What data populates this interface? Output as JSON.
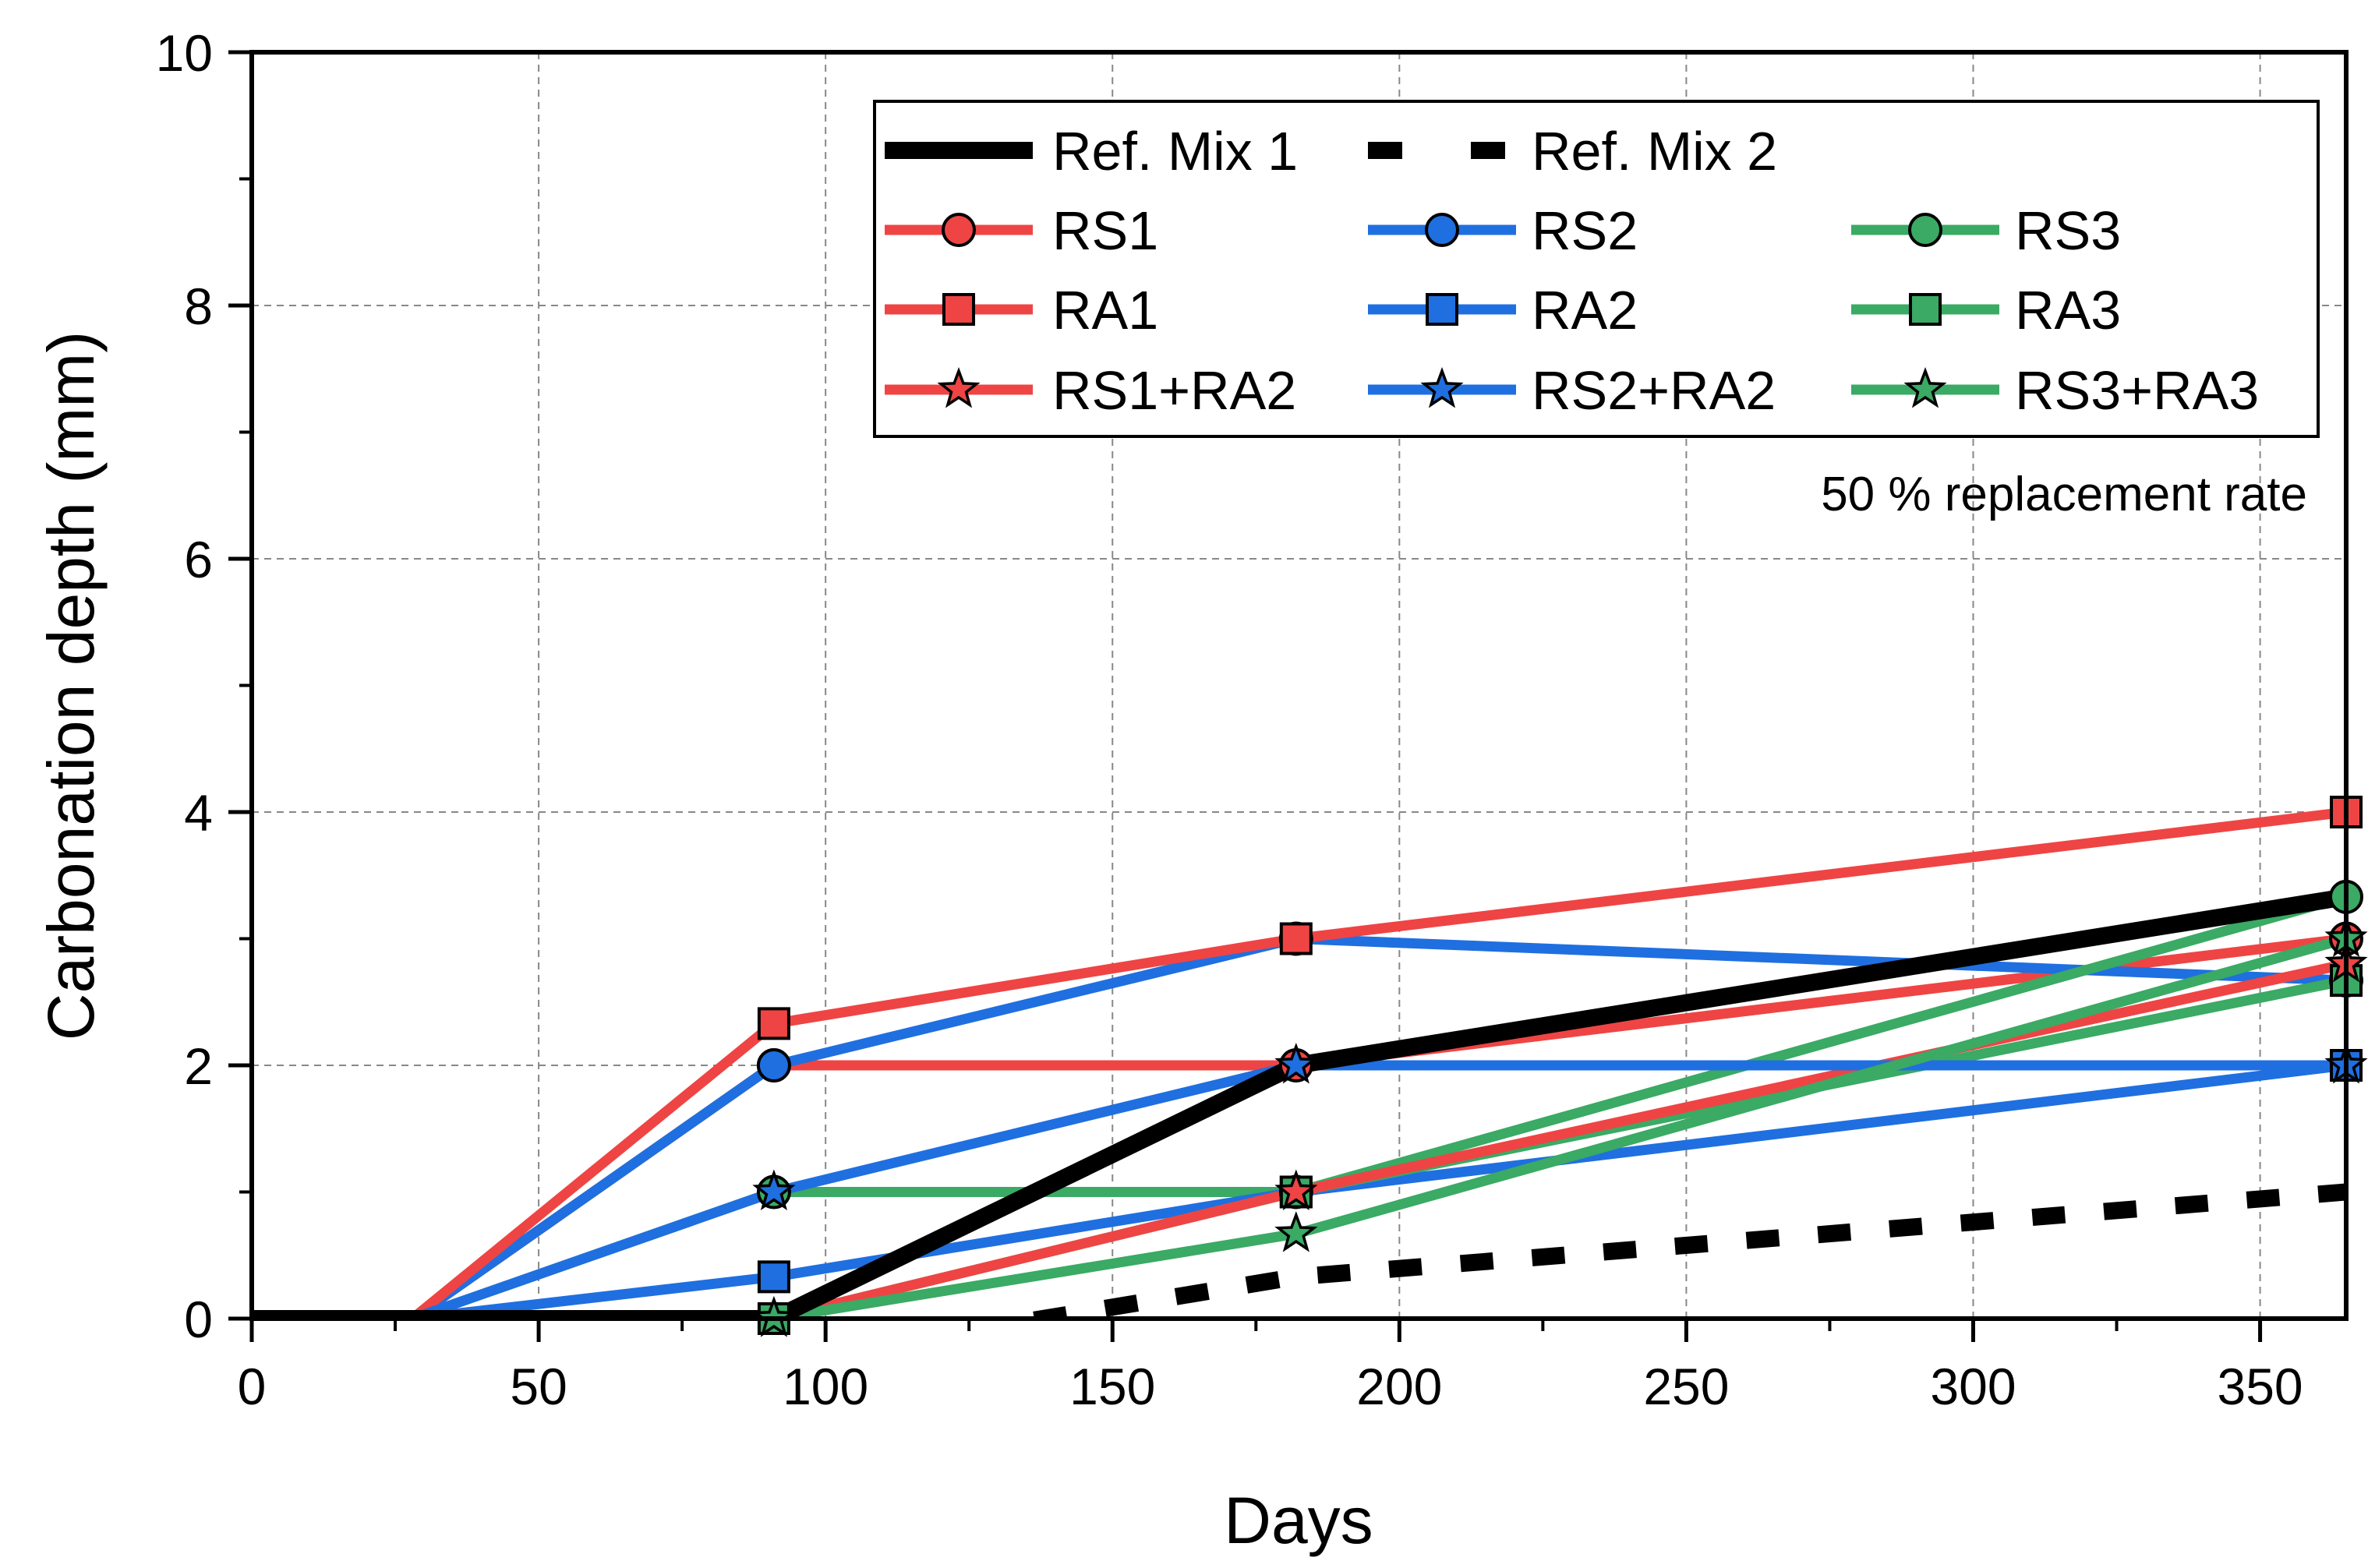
{
  "chart_data": {
    "type": "line",
    "xlabel": "Days",
    "ylabel": "Carbonation depth (mm)",
    "xlim": [
      0,
      365
    ],
    "ylim": [
      0,
      10
    ],
    "xticks": [
      0,
      50,
      100,
      150,
      200,
      250,
      300,
      350
    ],
    "yticks": [
      0,
      2,
      4,
      6,
      8,
      10
    ],
    "grid": true,
    "legend_position": "top-right",
    "annotation": "50 % replacement rate",
    "colors": {
      "red": "#ef4444",
      "blue": "#1f6fe0",
      "green": "#3aaa64",
      "black": "#000000"
    },
    "series": [
      {
        "name": "Ref. Mix 1",
        "color": "#000000",
        "marker": "none",
        "line": "solid-thick",
        "x": [
          0,
          28,
          91,
          182,
          365
        ],
        "y": [
          0,
          0,
          0,
          2,
          3.33
        ]
      },
      {
        "name": "Ref. Mix 2",
        "color": "#000000",
        "marker": "none",
        "line": "dashed",
        "x": [
          0,
          28,
          91,
          182,
          365
        ],
        "y": [
          0,
          0,
          -0.35,
          0.33,
          1.0
        ]
      },
      {
        "name": "RS1",
        "color": "#ef4444",
        "marker": "circle",
        "x": [
          0,
          28,
          91,
          182,
          365
        ],
        "y": [
          0,
          0,
          2,
          2,
          3.0
        ]
      },
      {
        "name": "RS2",
        "color": "#1f6fe0",
        "marker": "circle",
        "x": [
          0,
          28,
          91,
          182,
          365
        ],
        "y": [
          0,
          0,
          2,
          3,
          2.67
        ]
      },
      {
        "name": "RS3",
        "color": "#3aaa64",
        "marker": "circle",
        "x": [
          0,
          28,
          91,
          182,
          365
        ],
        "y": [
          0,
          0,
          1,
          1,
          3.33
        ]
      },
      {
        "name": "RA1",
        "color": "#ef4444",
        "marker": "square",
        "x": [
          0,
          28,
          91,
          182,
          365
        ],
        "y": [
          0,
          0,
          2.33,
          3,
          4.0
        ]
      },
      {
        "name": "RA2",
        "color": "#1f6fe0",
        "marker": "square",
        "x": [
          0,
          28,
          91,
          182,
          365
        ],
        "y": [
          0,
          0,
          0.33,
          1,
          2.0
        ]
      },
      {
        "name": "RA3",
        "color": "#3aaa64",
        "marker": "square",
        "x": [
          0,
          28,
          91,
          182,
          365
        ],
        "y": [
          0,
          0,
          0,
          1,
          2.67
        ]
      },
      {
        "name": "RS1+RA2",
        "color": "#ef4444",
        "marker": "star",
        "x": [
          0,
          28,
          91,
          182,
          365
        ],
        "y": [
          0,
          0,
          0,
          1,
          2.8
        ]
      },
      {
        "name": "RS2+RA2",
        "color": "#1f6fe0",
        "marker": "star",
        "x": [
          0,
          28,
          91,
          182,
          365
        ],
        "y": [
          0,
          0,
          1,
          2,
          2.0
        ]
      },
      {
        "name": "RS3+RA3",
        "color": "#3aaa64",
        "marker": "star",
        "x": [
          0,
          28,
          91,
          182,
          365
        ],
        "y": [
          0,
          0,
          0,
          0.67,
          3.0
        ]
      }
    ]
  }
}
